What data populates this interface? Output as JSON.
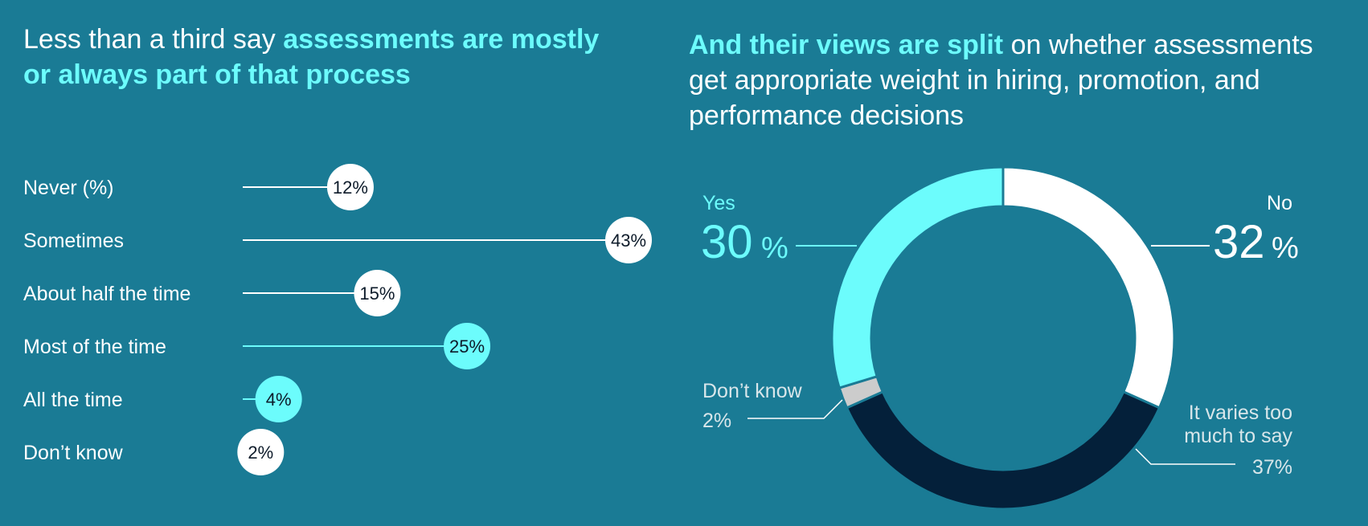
{
  "left_panel": {
    "title_plain": "Less than a third say ",
    "title_highlight": "assessments are mostly or always part of that process"
  },
  "right_panel": {
    "title_highlight": "And their views are split",
    "title_plain": " on whether assessments get appropriate weight in hiring, promotion, and performance decisions"
  },
  "colors": {
    "background": "#1a7b95",
    "cyan": "#6cfcfc",
    "white": "#ffffff",
    "navy": "#04203a",
    "gray": "#cccccc"
  },
  "chart_data": [
    {
      "type": "bar",
      "categories": [
        "Never (%)",
        "Sometimes",
        "About half the time",
        "Most of the time",
        "All the time",
        "Don’t know"
      ],
      "values": [
        12,
        43,
        15,
        25,
        4,
        2
      ],
      "value_labels": [
        "12%",
        "43%",
        "15%",
        "25%",
        "4%",
        "2%"
      ],
      "highlight": [
        false,
        false,
        false,
        true,
        true,
        false
      ],
      "xlim": [
        0,
        43
      ]
    },
    {
      "type": "pie",
      "style": "donut",
      "slices": [
        {
          "label": "No",
          "value": 32,
          "value_label": "32",
          "pct_label": "%"
        },
        {
          "label": "It varies too much to say",
          "value": 37,
          "value_label": "37%"
        },
        {
          "label": "Don’t know",
          "value": 2,
          "value_label": "2%"
        },
        {
          "label": "Yes",
          "value": 30,
          "value_label": "30",
          "pct_label": "%"
        }
      ]
    }
  ]
}
